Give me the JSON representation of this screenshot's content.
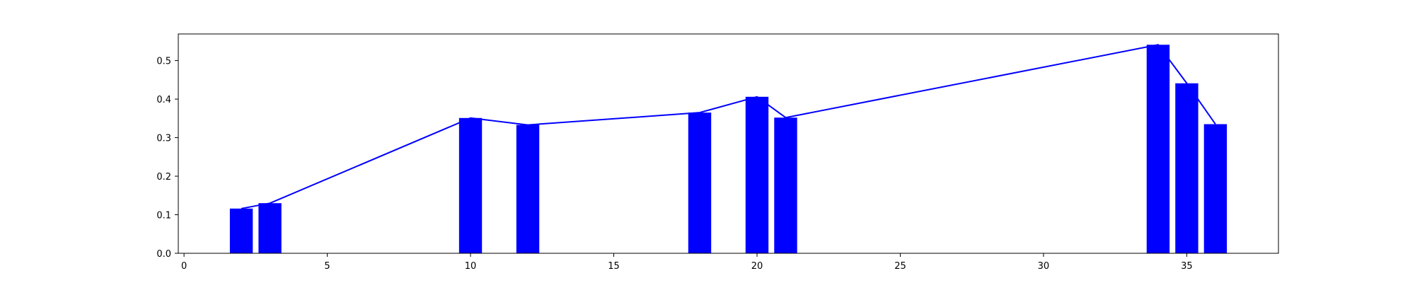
{
  "chart_data": {
    "type": "bar",
    "x": [
      2,
      3,
      10,
      12,
      18,
      20,
      21,
      34,
      35,
      36
    ],
    "values": [
      0.116,
      0.13,
      0.351,
      0.333,
      0.365,
      0.406,
      0.352,
      0.541,
      0.441,
      0.335
    ],
    "line_values": [
      0.116,
      0.13,
      0.351,
      0.333,
      0.365,
      0.406,
      0.352,
      0.541,
      0.441,
      0.335
    ],
    "xlim": [
      -0.2,
      38.2
    ],
    "ylim": [
      0.0,
      0.569
    ],
    "xticks": [
      0,
      5,
      10,
      15,
      20,
      25,
      30,
      35
    ],
    "yticks": [
      0.0,
      0.1,
      0.2,
      0.3,
      0.4,
      0.5
    ],
    "xtick_labels": [
      "0",
      "5",
      "10",
      "15",
      "20",
      "25",
      "30",
      "35"
    ],
    "ytick_labels": [
      "0.0",
      "0.1",
      "0.2",
      "0.3",
      "0.4",
      "0.5"
    ],
    "title": "",
    "xlabel": "",
    "ylabel": "",
    "grid": false,
    "legend": "none",
    "colors": {
      "bar": "#0000ff",
      "line": "#0000ff",
      "axes": "#000000",
      "background": "#ffffff"
    }
  }
}
